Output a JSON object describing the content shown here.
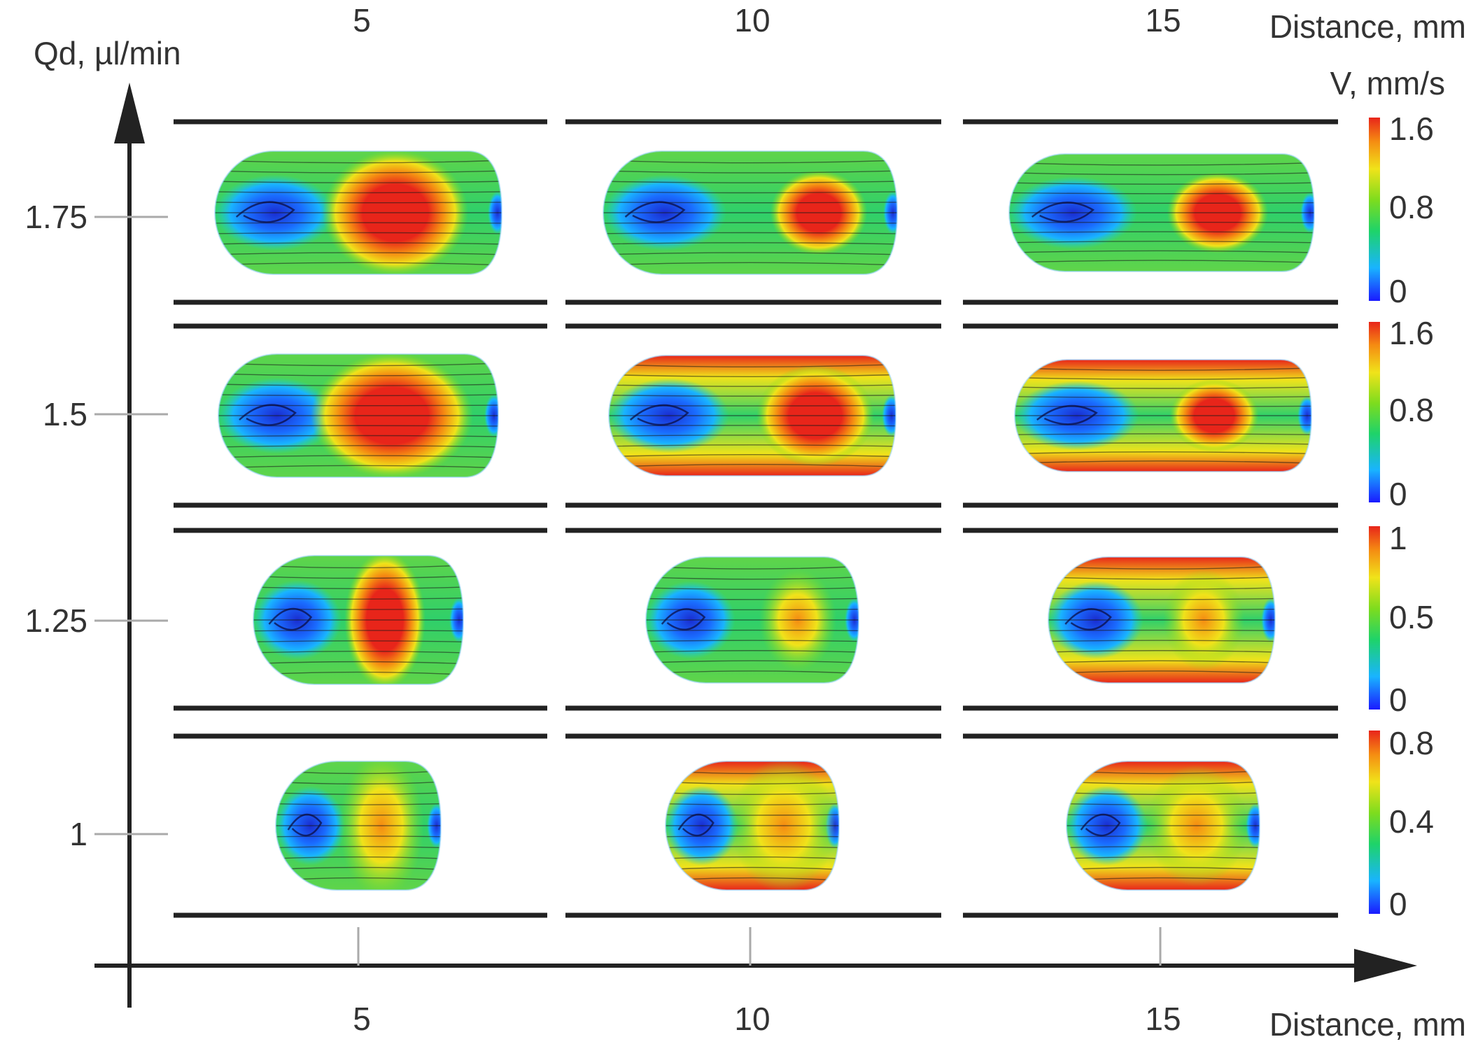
{
  "figure": {
    "y_axis_title": "Qd, µl/min",
    "x_axis_title_top": "Distance, mm",
    "x_axis_title_bottom": "Distance, mm",
    "colorbar_title": "V, mm/s",
    "x_ticks": [
      "5",
      "10",
      "15"
    ],
    "y_ticks": [
      "1.75",
      "1.5",
      "1.25",
      "1"
    ],
    "colorbars": [
      {
        "row": "1.75",
        "ticks": [
          "1.6",
          "0.8",
          "0"
        ]
      },
      {
        "row": "1.5",
        "ticks": [
          "1.6",
          "0.8",
          "0"
        ]
      },
      {
        "row": "1.25",
        "ticks": [
          "1",
          "0.5",
          "0"
        ]
      },
      {
        "row": "1",
        "ticks": [
          "0.8",
          "0.4",
          "0"
        ]
      }
    ],
    "colormap": [
      "#1a1aff",
      "#19b4ff",
      "#1ed36a",
      "#7ddc1e",
      "#f0e31a",
      "#f58c12",
      "#e8251a"
    ],
    "line_color": "#222222"
  },
  "chart_data": {
    "type": "heatmap",
    "xlabel": "Distance, mm",
    "ylabel": "Qd, µl/min",
    "x": [
      5,
      10,
      15
    ],
    "y": [
      1.75,
      1.5,
      1.25,
      1
    ],
    "colorbar_label": "V, mm/s",
    "colorbar_max_by_row": [
      1.6,
      1.6,
      1,
      0.8
    ]
  }
}
